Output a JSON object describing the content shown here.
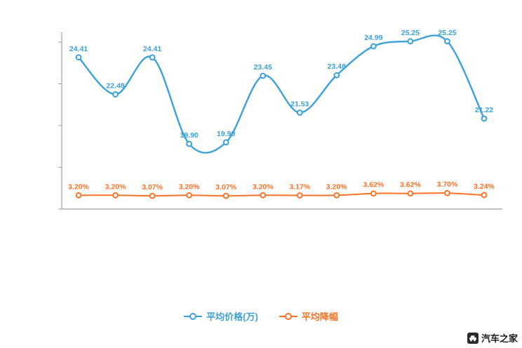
{
  "chart_data": {
    "type": "line",
    "title": "",
    "grid": false,
    "legend_position": "bottom",
    "x_tick_labels_visible": false,
    "series": [
      {
        "name": "平均价格(万)",
        "color": "#3aa1da",
        "ylim": [
          16.5,
          25.5
        ],
        "values": [
          24.41,
          22.48,
          24.41,
          19.9,
          19.98,
          23.45,
          21.53,
          23.48,
          24.99,
          25.25,
          25.25,
          21.22
        ],
        "labels": [
          "24.41",
          "22.48",
          "24.41",
          "19.90",
          "19.98",
          "23.45",
          "21.53",
          "23.48",
          "24.99",
          "25.25",
          "25.25",
          "21.22"
        ]
      },
      {
        "name": "平均降幅",
        "color": "#fc7226",
        "ylim": [
          0,
          40
        ],
        "values": [
          3.2,
          3.2,
          3.07,
          3.2,
          3.07,
          3.2,
          3.17,
          3.2,
          3.62,
          3.62,
          3.7,
          3.24
        ],
        "labels": [
          "3.20%",
          "3.20%",
          "3.07%",
          "3.20%",
          "3.07%",
          "3.20%",
          "3.17%",
          "3.20%",
          "3.62%",
          "3.62%",
          "3.70%",
          "3.24%"
        ]
      }
    ]
  },
  "legend": {
    "items": [
      {
        "label": "平均价格(万)",
        "color": "#3aa1da"
      },
      {
        "label": "平均降幅",
        "color": "#fc7226"
      }
    ]
  },
  "watermark": {
    "text": "汽车之家"
  }
}
